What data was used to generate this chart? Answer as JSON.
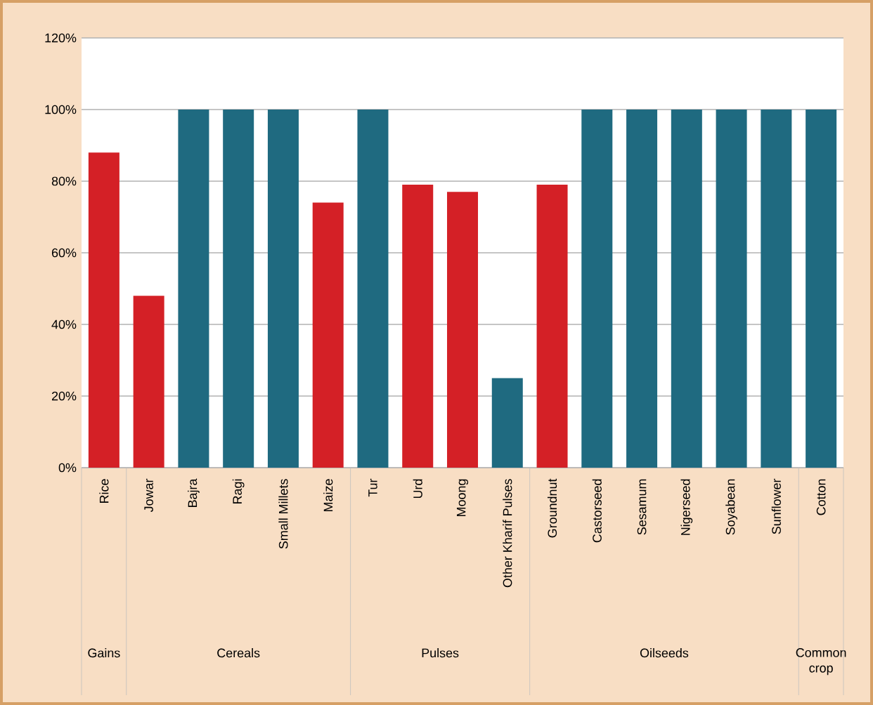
{
  "chart_data": {
    "type": "bar",
    "categories": [
      "Rice",
      "Jowar",
      "Bajra",
      "Ragi",
      "Small Millets",
      "Maize",
      "Tur",
      "Urd",
      "Moong",
      "Other Kharif Pulses",
      "Groundnut",
      "Castorseed",
      "Sesamum",
      "Nigerseed",
      "Soyabean",
      "Sunflower",
      "Cotton"
    ],
    "values": [
      88,
      48,
      100,
      100,
      100,
      74,
      100,
      79,
      77,
      25,
      79,
      100,
      100,
      100,
      100,
      100,
      100
    ],
    "colors": [
      "#d42026",
      "#d42026",
      "#1f6a80",
      "#1f6a80",
      "#1f6a80",
      "#d42026",
      "#1f6a80",
      "#d42026",
      "#d42026",
      "#1f6a80",
      "#d42026",
      "#1f6a80",
      "#1f6a80",
      "#1f6a80",
      "#1f6a80",
      "#1f6a80",
      "#1f6a80"
    ],
    "ylim": [
      0,
      120
    ],
    "yticks": [
      {
        "value": 0,
        "label": "0%"
      },
      {
        "value": 20,
        "label": "20%"
      },
      {
        "value": 40,
        "label": "40%"
      },
      {
        "value": 60,
        "label": "60%"
      },
      {
        "value": 80,
        "label": "80%"
      },
      {
        "value": 100,
        "label": "100%"
      },
      {
        "value": 120,
        "label": "120%"
      }
    ],
    "grid": "y",
    "annotations": [
      "Gains",
      "Cereals",
      "Pulses",
      "Oilseeds",
      "Common crop"
    ]
  }
}
